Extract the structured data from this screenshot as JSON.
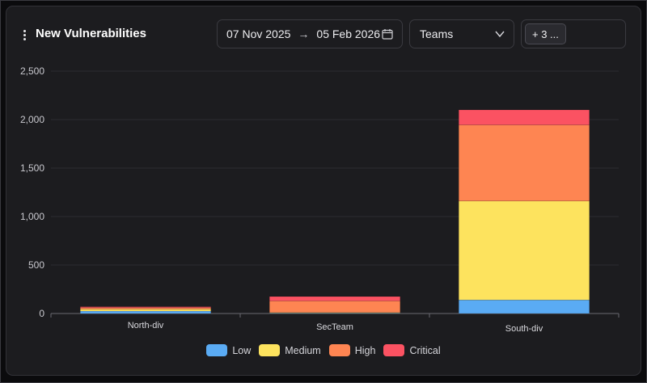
{
  "header": {
    "title": "New Vulnerabilities",
    "date_start": "07 Nov 2025",
    "date_arrow": "→",
    "date_end": "05 Feb 2026",
    "teams_label": "Teams",
    "chip_label": "+ 3 ..."
  },
  "icons": {
    "menu": "kebab-menu-icon",
    "calendar": "calendar-icon",
    "dropdown": "chevron-down-icon"
  },
  "chart_data": {
    "type": "bar",
    "stacked": true,
    "title": "",
    "xlabel": "",
    "ylabel": "",
    "categories": [
      "North-div",
      "SecTeam",
      "South-div"
    ],
    "series": [
      {
        "name": "Low",
        "color": "#5aabf4",
        "values": [
          25,
          5,
          140
        ]
      },
      {
        "name": "Medium",
        "color": "#fde35e",
        "values": [
          20,
          5,
          1020
        ]
      },
      {
        "name": "High",
        "color": "#fe8552",
        "values": [
          15,
          120,
          785
        ]
      },
      {
        "name": "Critical",
        "color": "#fb5262",
        "values": [
          10,
          45,
          155
        ]
      }
    ],
    "yticks": [
      0,
      500,
      1000,
      1500,
      2000,
      2500
    ],
    "ytick_labels": [
      "0",
      "500",
      "1,000",
      "1,500",
      "2,000",
      "2,500"
    ],
    "ylim": [
      0,
      2500
    ],
    "grid": true,
    "legend_position": "bottom-center"
  }
}
